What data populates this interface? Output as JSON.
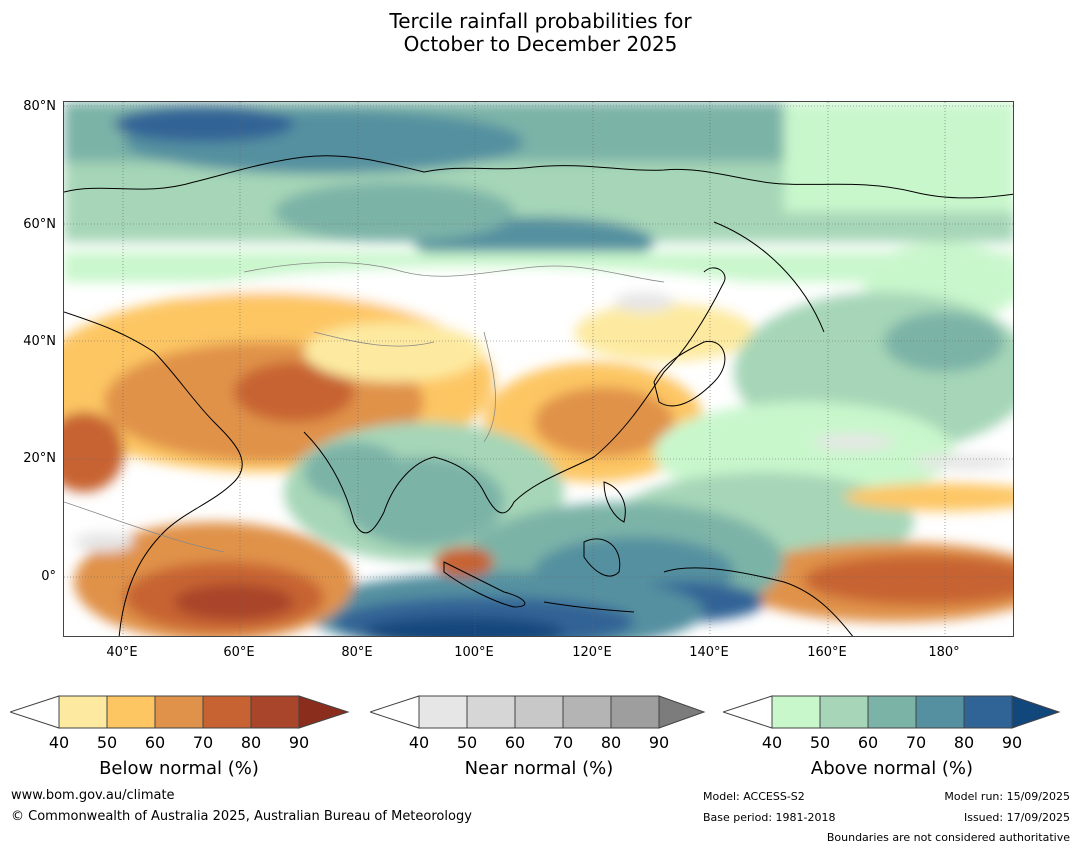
{
  "title": {
    "line1": "Tercile rainfall probabilities for",
    "line2": "October to December 2025"
  },
  "axes": {
    "lat_labels": [
      "80°N",
      "60°N",
      "40°N",
      "20°N",
      "0°"
    ],
    "lon_labels": [
      "40°E",
      "60°E",
      "80°E",
      "100°E",
      "120°E",
      "140°E",
      "160°E",
      "180°"
    ]
  },
  "colorbars": [
    {
      "label": "Below normal (%)",
      "ticks": [
        "40",
        "50",
        "60",
        "70",
        "80",
        "90"
      ],
      "colors": [
        "#ffffff",
        "#fdeaa0",
        "#fdc663",
        "#e0924a",
        "#c76332",
        "#a9452a",
        "#8a2d1c"
      ]
    },
    {
      "label": "Near normal (%)",
      "ticks": [
        "40",
        "50",
        "60",
        "70",
        "80",
        "90"
      ],
      "colors": [
        "#ffffff",
        "#e6e6e6",
        "#d6d6d6",
        "#c8c8c8",
        "#b4b4b4",
        "#9e9e9e",
        "#7c7c7c"
      ]
    },
    {
      "label": "Above normal (%)",
      "ticks": [
        "40",
        "50",
        "60",
        "70",
        "80",
        "90"
      ],
      "colors": [
        "#ffffff",
        "#c9f7cc",
        "#a6d6b7",
        "#7cb3a7",
        "#5590a0",
        "#316496",
        "#12477c"
      ]
    }
  ],
  "footer": {
    "website": "www.bom.gov.au/climate",
    "copyright": "© Commonwealth of Australia 2025, Australian Bureau of Meteorology",
    "model": "Model: ACCESS-S2",
    "base_period": "Base period: 1981-2018",
    "model_run": "Model run: 15/09/2025",
    "issued": "Issued: 17/09/2025",
    "boundaries": "Boundaries are not considered authoritative"
  }
}
